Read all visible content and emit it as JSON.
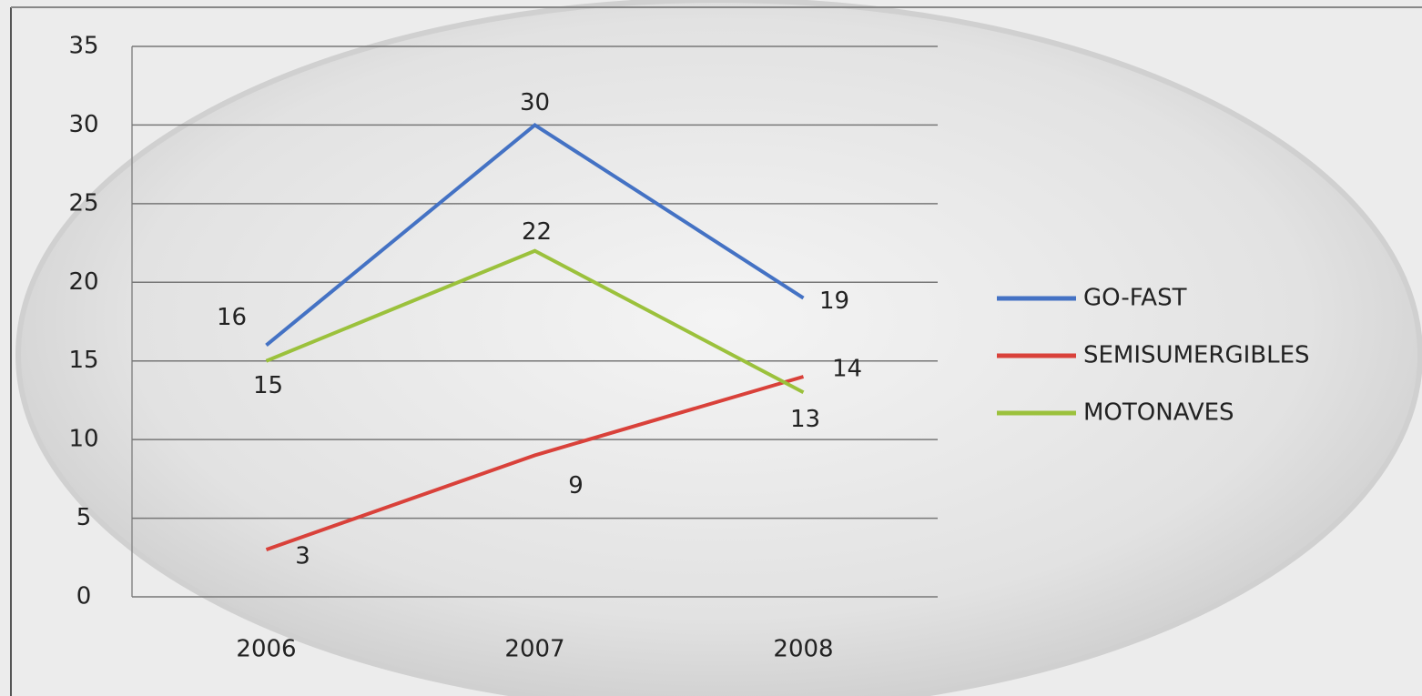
{
  "chart_data": {
    "type": "line",
    "categories": [
      "2006",
      "2007",
      "2008"
    ],
    "series": [
      {
        "name": "GO-FAST",
        "color": "#4472c4",
        "values": [
          16,
          30,
          19
        ]
      },
      {
        "name": "SEMISUMERGIBLES",
        "color": "#d9413a",
        "values": [
          3,
          9,
          14
        ]
      },
      {
        "name": "MOTONAVES",
        "color": "#9bc13c",
        "values": [
          15,
          22,
          13
        ]
      }
    ],
    "ylim": [
      0,
      35
    ],
    "yticks": [
      0,
      5,
      10,
      15,
      20,
      25,
      30,
      35
    ],
    "grid": true,
    "legend": "right"
  }
}
